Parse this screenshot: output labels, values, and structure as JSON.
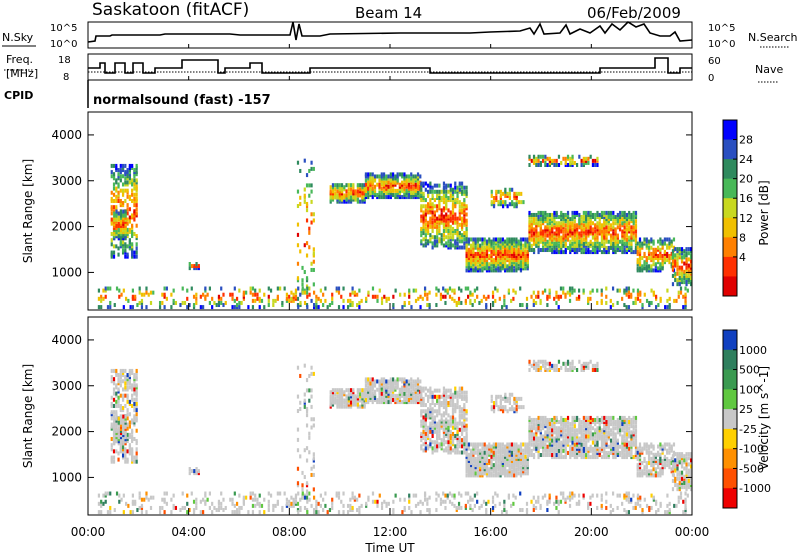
{
  "header": {
    "station": "Saskatoon (fitACF)",
    "beam": "Beam 14",
    "date": "06/Feb/2009"
  },
  "top_panels": {
    "nsky_label": "N.Sky",
    "nsearch_label": "N.Search",
    "noise_ticks_left": [
      "10^5",
      "10^0"
    ],
    "noise_ticks_right": [
      "10^5",
      "10^0"
    ],
    "freq_label_1": "Freq.",
    "freq_label_2": "[MHz]",
    "freq_ticks": [
      "18",
      "8"
    ],
    "nave_label": "Nave",
    "nave_ticks": [
      "60",
      "0"
    ],
    "cpid_label": "CPID",
    "cpid_text": "normalsound (fast) -157"
  },
  "chart_data": [
    {
      "type": "heatmap",
      "name": "power",
      "ylabel": "Slant Range [km]",
      "y_ticks": [
        "4000",
        "3000",
        "2000",
        "1000"
      ],
      "ylim": [
        180,
        4500
      ],
      "colorbar_label": "Power [dB]",
      "colorbar_ticks": [
        "28",
        "24",
        "20",
        "16",
        "12",
        "8",
        "4"
      ],
      "colorbar_colors": [
        "#0000ff",
        "#2a4fc0",
        "#2f8a5e",
        "#48b858",
        "#c8d820",
        "#f0c000",
        "#ff8000",
        "#ff3000",
        "#e00000"
      ]
    },
    {
      "type": "heatmap",
      "name": "velocity",
      "ylabel": "Slant Range [km]",
      "y_ticks": [
        "4000",
        "3000",
        "2000",
        "1000"
      ],
      "ylim": [
        180,
        4500
      ],
      "colorbar_label": "Velocity [m s^-1]",
      "colorbar_ticks": [
        "1000",
        "500",
        "100",
        "25",
        "-25",
        "-100",
        "-500",
        "-1000"
      ],
      "colorbar_colors": [
        "#1040c0",
        "#2f7f5e",
        "#3a9a50",
        "#60c840",
        "#c8c8c8",
        "#ffd000",
        "#ff9000",
        "#ff5000",
        "#ee0000"
      ]
    }
  ],
  "x_axis": {
    "label": "Time UT",
    "ticks": [
      "00:00",
      "04:00",
      "08:00",
      "12:00",
      "16:00",
      "20:00",
      "00:00"
    ],
    "xlim_hours": [
      0,
      24
    ]
  }
}
